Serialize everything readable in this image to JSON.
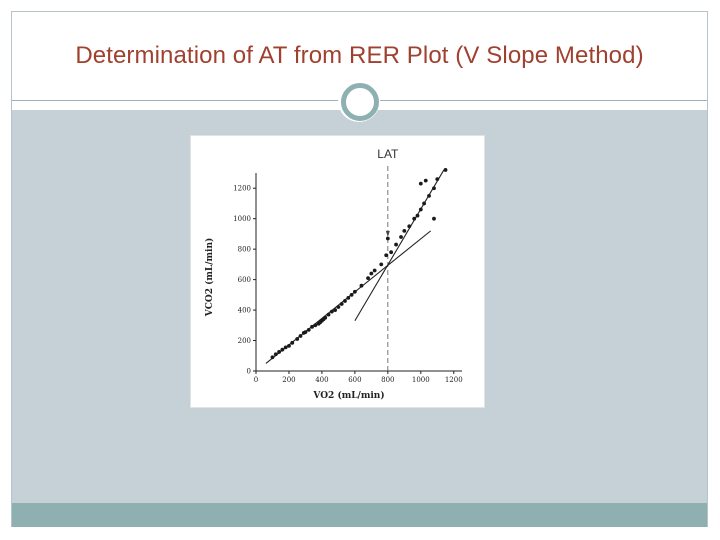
{
  "slide": {
    "title": "Determination of AT from RER Plot (V Slope Method)"
  },
  "colors": {
    "title": "#a0412f",
    "content_bg": "#c5d1d6",
    "footer": "#8fb0b0",
    "ring": "#8fb0b0"
  },
  "chart_data": {
    "type": "scatter",
    "title": "",
    "xlabel": "VO2 (mL/min)",
    "ylabel": "VCO2 (mL/min)",
    "xlim": [
      0,
      1250
    ],
    "ylim": [
      0,
      1300
    ],
    "x_ticks": [
      0,
      200,
      400,
      600,
      800,
      1000,
      1200
    ],
    "x_tick_labels": [
      "0",
      "200",
      "400",
      "600",
      "800",
      "1000",
      "1200"
    ],
    "y_ticks": [
      0,
      200,
      400,
      600,
      800,
      1000,
      1200
    ],
    "y_tick_labels": [
      "0",
      "200",
      "400",
      "600",
      "800",
      "1000",
      "1200"
    ],
    "grid": false,
    "annotation": {
      "text": "LAT",
      "x": 800
    },
    "series": [
      {
        "values": [
          [
            100,
            90
          ],
          [
            120,
            110
          ],
          [
            140,
            125
          ],
          [
            160,
            140
          ],
          [
            180,
            155
          ],
          [
            200,
            165
          ],
          [
            220,
            185
          ],
          [
            250,
            210
          ],
          [
            270,
            230
          ],
          [
            290,
            250
          ],
          [
            300,
            255
          ],
          [
            320,
            270
          ],
          [
            340,
            290
          ],
          [
            360,
            300
          ],
          [
            380,
            310
          ],
          [
            390,
            320
          ],
          [
            400,
            330
          ],
          [
            410,
            340
          ],
          [
            420,
            350
          ],
          [
            440,
            370
          ],
          [
            460,
            390
          ],
          [
            480,
            400
          ],
          [
            500,
            420
          ],
          [
            520,
            440
          ],
          [
            540,
            460
          ],
          [
            560,
            480
          ],
          [
            580,
            500
          ],
          [
            600,
            520
          ],
          [
            640,
            560
          ],
          [
            680,
            610
          ],
          [
            700,
            640
          ],
          [
            720,
            660
          ],
          [
            760,
            700
          ],
          [
            790,
            760
          ],
          [
            800,
            870
          ],
          [
            820,
            780
          ],
          [
            850,
            830
          ],
          [
            880,
            880
          ],
          [
            900,
            920
          ],
          [
            930,
            950
          ],
          [
            960,
            1000
          ],
          [
            980,
            1020
          ],
          [
            1000,
            1060
          ],
          [
            1020,
            1100
          ],
          [
            1050,
            1150
          ],
          [
            1080,
            1200
          ],
          [
            1100,
            1260
          ],
          [
            1150,
            1320
          ],
          [
            1000,
            1230
          ],
          [
            1030,
            1250
          ],
          [
            1080,
            1000
          ]
        ]
      }
    ],
    "fit_lines": [
      {
        "from": [
          60,
          50
        ],
        "to": [
          1060,
          920
        ]
      },
      {
        "from": [
          600,
          330
        ],
        "to": [
          1140,
          1320
        ]
      }
    ]
  }
}
